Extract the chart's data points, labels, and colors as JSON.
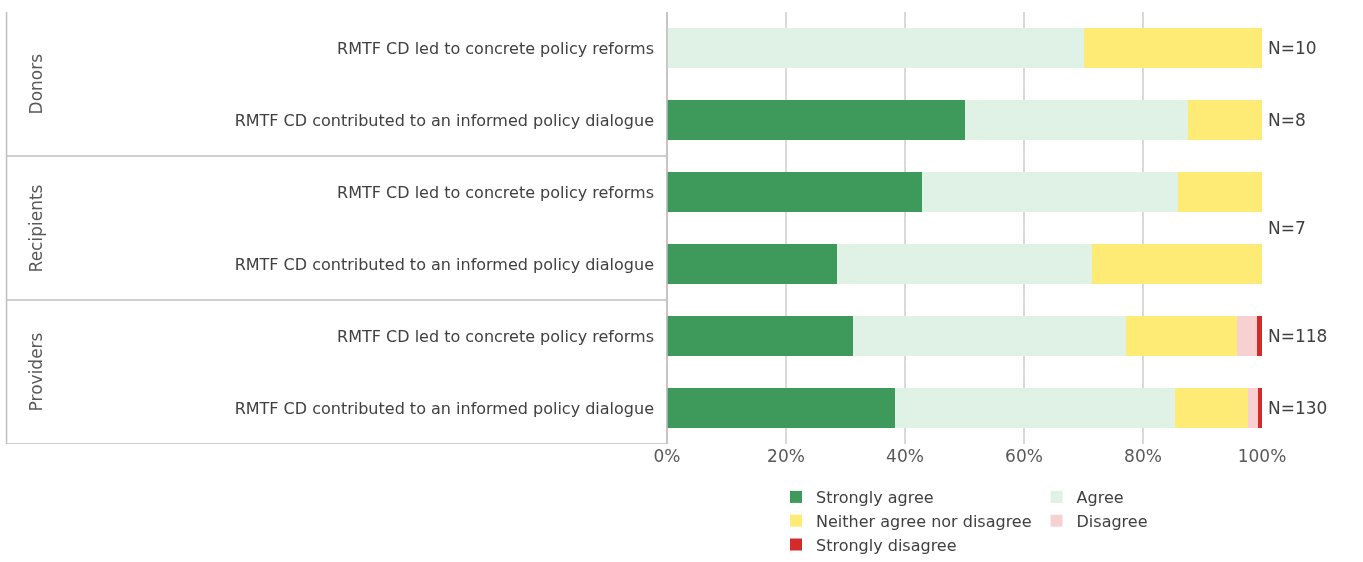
{
  "chart_data": {
    "type": "bar",
    "orientation": "horizontal",
    "stacked": true,
    "categories": [
      "RMTF CD led to concrete policy reforms",
      "RMTF CD contributed to an informed policy dialogue",
      "RMTF CD led to concrete policy reforms",
      "RMTF CD contributed to an informed policy dialogue",
      "RMTF CD led to concrete policy reforms",
      "RMTF CD contributed to an informed policy dialogue"
    ],
    "series": [
      {
        "name": "Strongly agree",
        "color": "#3e9a5b",
        "values": [
          0,
          50,
          42.9,
          28.6,
          31.2,
          38.3
        ]
      },
      {
        "name": "Agree",
        "color": "#e0f1e5",
        "values": [
          70,
          37.5,
          42.9,
          42.9,
          46.0,
          47.1
        ]
      },
      {
        "name": "Neither agree nor disagree",
        "color": "#fdeb76",
        "values": [
          30,
          12.5,
          14.2,
          28.5,
          18.6,
          12.3
        ]
      },
      {
        "name": "Disagree",
        "color": "#f7d1d1",
        "values": [
          0,
          0,
          0,
          0,
          3.4,
          1.6
        ]
      },
      {
        "name": "Strongly disagree",
        "color": "#d42a2a",
        "values": [
          0,
          0,
          0,
          0,
          0.8,
          0.7
        ]
      }
    ],
    "xlim": [
      0,
      100
    ],
    "xticks": [
      {
        "value": 0,
        "label": "0%"
      },
      {
        "value": 20,
        "label": "20%"
      },
      {
        "value": 40,
        "label": "40%"
      },
      {
        "value": 60,
        "label": "60%"
      },
      {
        "value": 80,
        "label": "80%"
      },
      {
        "value": 100,
        "label": "100%"
      }
    ],
    "annotations": [
      "Donors",
      "Recipients",
      "Providers",
      "N=10",
      "N=8",
      "N=7",
      "N=118",
      "N=130"
    ],
    "grid": "x",
    "legend": "bottom"
  }
}
